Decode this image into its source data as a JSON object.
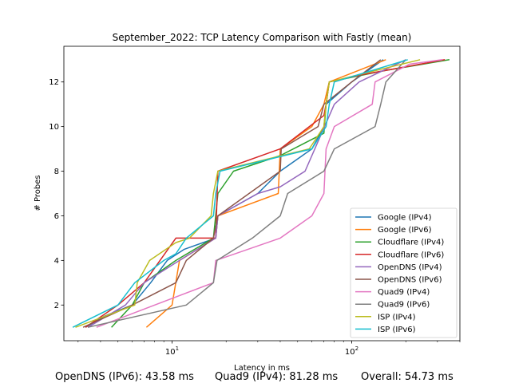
{
  "chart_data": {
    "type": "line",
    "title": "September_2022: TCP Latency Comparison with Fastly (mean)",
    "xlabel": "Latency in ms",
    "ylabel": "# Probes",
    "xscale": "log",
    "xlim": [
      2.5,
      400
    ],
    "ylim": [
      0.4,
      13.6
    ],
    "x_ticks": [
      {
        "value": 10,
        "label": "10",
        "base": "10",
        "exp": "1"
      },
      {
        "value": 100,
        "label": "100",
        "base": "10",
        "exp": "2"
      }
    ],
    "y_ticks": [
      2,
      4,
      6,
      8,
      10,
      12
    ],
    "grid": false,
    "legend_position": "lower-right",
    "series": [
      {
        "name": "Google (IPv4)",
        "color": "#1f77b4",
        "points": [
          [
            3.3,
            1
          ],
          [
            4.2,
            1.5
          ],
          [
            6,
            2
          ],
          [
            7.6,
            3
          ],
          [
            9.4,
            4
          ],
          [
            11.7,
            4.5
          ],
          [
            17.5,
            5
          ],
          [
            18,
            6
          ],
          [
            30,
            7
          ],
          [
            40,
            8
          ],
          [
            60,
            9
          ],
          [
            70,
            10
          ],
          [
            72,
            11
          ],
          [
            100,
            12
          ],
          [
            150,
            13
          ]
        ]
      },
      {
        "name": "Google (IPv6)",
        "color": "#ff7f0e",
        "points": [
          [
            7.2,
            1
          ],
          [
            10,
            2
          ],
          [
            11,
            4
          ],
          [
            17.5,
            5
          ],
          [
            18,
            6
          ],
          [
            39,
            7
          ],
          [
            40,
            9
          ],
          [
            60,
            10
          ],
          [
            70,
            11
          ],
          [
            75,
            12
          ],
          [
            155,
            13
          ]
        ]
      },
      {
        "name": "Cloudflare (IPv4)",
        "color": "#2ca02c",
        "points": [
          [
            4.6,
            1
          ],
          [
            6,
            2
          ],
          [
            7,
            3
          ],
          [
            10.5,
            4
          ],
          [
            17,
            5
          ],
          [
            18,
            7
          ],
          [
            22,
            8
          ],
          [
            40,
            8.7
          ],
          [
            70,
            9.7
          ],
          [
            72,
            11
          ],
          [
            75,
            12
          ],
          [
            150,
            12.5
          ],
          [
            350,
            13
          ]
        ]
      },
      {
        "name": "Cloudflare (IPv6)",
        "color": "#d62728",
        "points": [
          [
            3.3,
            1
          ],
          [
            5,
            2
          ],
          [
            7,
            3
          ],
          [
            10.5,
            5
          ],
          [
            17.5,
            5
          ],
          [
            18,
            8
          ],
          [
            40,
            9
          ],
          [
            70,
            10.5
          ],
          [
            72,
            11
          ],
          [
            75,
            12
          ],
          [
            110,
            12.3
          ],
          [
            330,
            13
          ]
        ]
      },
      {
        "name": "OpenDNS (IPv4)",
        "color": "#9467bd",
        "points": [
          [
            3.4,
            1
          ],
          [
            5.5,
            2
          ],
          [
            7,
            3
          ],
          [
            11,
            4
          ],
          [
            17.5,
            5
          ],
          [
            18,
            6
          ],
          [
            30,
            7
          ],
          [
            40,
            7.3
          ],
          [
            55,
            8
          ],
          [
            80,
            11
          ],
          [
            110,
            12
          ],
          [
            200,
            13
          ]
        ]
      },
      {
        "name": "OpenDNS (IPv6)",
        "color": "#8c564b",
        "points": [
          [
            3.2,
            1
          ],
          [
            6,
            2
          ],
          [
            10.5,
            3
          ],
          [
            12,
            4
          ],
          [
            17,
            5
          ],
          [
            18,
            6
          ],
          [
            40,
            8
          ],
          [
            40.5,
            9
          ],
          [
            65,
            10
          ],
          [
            70,
            11
          ],
          [
            100,
            12
          ],
          [
            145,
            13
          ]
        ]
      },
      {
        "name": "Quad9 (IPv4)",
        "color": "#e377c2",
        "points": [
          [
            3.8,
            1
          ],
          [
            8,
            2
          ],
          [
            17,
            3
          ],
          [
            17.5,
            4
          ],
          [
            40,
            5
          ],
          [
            60,
            6
          ],
          [
            70,
            7
          ],
          [
            72,
            9
          ],
          [
            80,
            10
          ],
          [
            130,
            11
          ],
          [
            135,
            12
          ],
          [
            210,
            12.8
          ],
          [
            320,
            13
          ]
        ]
      },
      {
        "name": "Quad9 (IPv6)",
        "color": "#7f7f7f",
        "points": [
          [
            3.4,
            1
          ],
          [
            12,
            2
          ],
          [
            17,
            3
          ],
          [
            17.8,
            4
          ],
          [
            28,
            5
          ],
          [
            40,
            6
          ],
          [
            44,
            7
          ],
          [
            70,
            8
          ],
          [
            80,
            9
          ],
          [
            135,
            10
          ],
          [
            145,
            11
          ],
          [
            155,
            12
          ],
          [
            200,
            13
          ]
        ]
      },
      {
        "name": "ISP (IPv4)",
        "color": "#bcbd22",
        "points": [
          [
            2.9,
            1
          ],
          [
            6.2,
            2
          ],
          [
            6.4,
            3
          ],
          [
            7.5,
            4
          ],
          [
            10.5,
            4.8
          ],
          [
            12.5,
            5
          ],
          [
            16.5,
            6
          ],
          [
            17,
            7
          ],
          [
            18,
            8
          ],
          [
            58,
            9
          ],
          [
            70,
            10
          ],
          [
            72,
            11
          ],
          [
            75,
            12
          ],
          [
            240,
            13
          ]
        ]
      },
      {
        "name": "ISP (IPv6)",
        "color": "#17becf",
        "points": [
          [
            2.8,
            1
          ],
          [
            5,
            2
          ],
          [
            6.2,
            3
          ],
          [
            9,
            4
          ],
          [
            10.5,
            4.3
          ],
          [
            12,
            5
          ],
          [
            17,
            6
          ],
          [
            17.5,
            7
          ],
          [
            18.5,
            8
          ],
          [
            60,
            9
          ],
          [
            72,
            10
          ],
          [
            75,
            11
          ],
          [
            80,
            12
          ],
          [
            205,
            13
          ]
        ]
      }
    ]
  },
  "footer": {
    "opendns_ipv6": "OpenDNS (IPv6): 43.58 ms",
    "quad9_ipv4": "Quad9 (IPv4): 81.28 ms",
    "overall": "Overall: 54.73 ms"
  }
}
